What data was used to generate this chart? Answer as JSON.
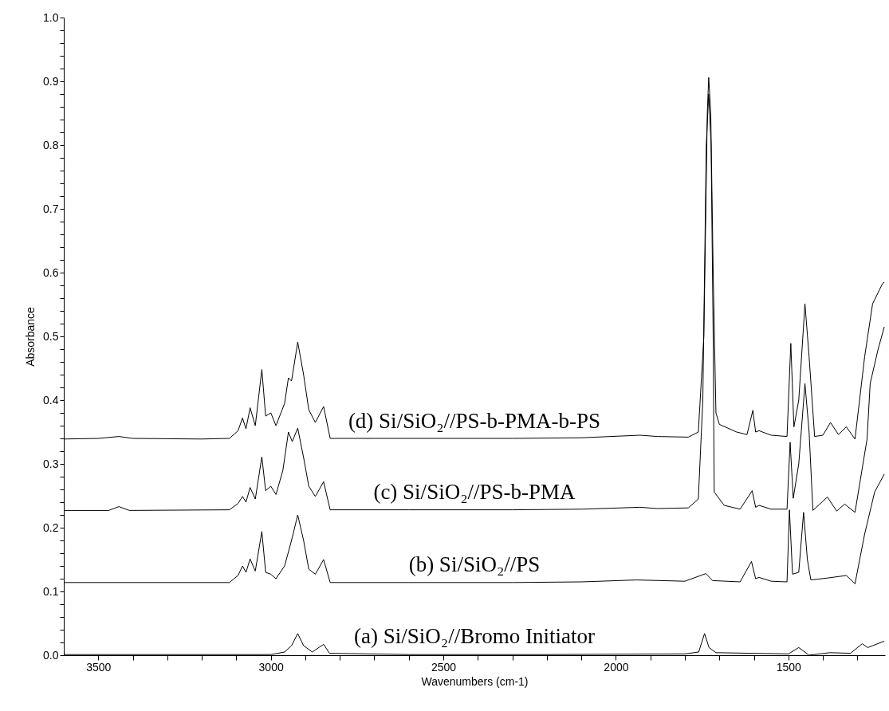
{
  "chart_data": {
    "type": "line",
    "xlabel": "Wavenumbers (cm-1)",
    "ylabel": "Absorbance",
    "xlim": [
      3600,
      1220
    ],
    "ylim": [
      0,
      1.0
    ],
    "xticks": [
      3500,
      {
        "value": 3400,
        "label": null
      },
      {
        "value": 3300,
        "label": null
      },
      {
        "value": 3200,
        "label": null
      },
      {
        "value": 3100,
        "label": null
      },
      3000,
      {
        "value": 2900,
        "label": null
      },
      {
        "value": 2800,
        "label": null
      },
      {
        "value": 2700,
        "label": null
      },
      {
        "value": 2600,
        "label": null
      },
      2500,
      {
        "value": 2400,
        "label": null
      },
      {
        "value": 2300,
        "label": null
      },
      {
        "value": 2200,
        "label": null
      },
      {
        "value": 2100,
        "label": null
      },
      2000,
      {
        "value": 1900,
        "label": null
      },
      {
        "value": 1800,
        "label": null
      },
      {
        "value": 1700,
        "label": null
      },
      {
        "value": 1600,
        "label": null
      },
      1500,
      {
        "value": 1400,
        "label": null
      },
      {
        "value": 1300,
        "label": null
      }
    ],
    "yticks": [
      {
        "value": 0,
        "label": "0.0"
      },
      {
        "value": 0.02,
        "label": null
      },
      {
        "value": 0.04,
        "label": null
      },
      {
        "value": 0.06,
        "label": null
      },
      {
        "value": 0.08,
        "label": null
      },
      0.1,
      {
        "value": 0.12,
        "label": null
      },
      {
        "value": 0.14,
        "label": null
      },
      {
        "value": 0.16,
        "label": null
      },
      {
        "value": 0.18,
        "label": null
      },
      0.2,
      {
        "value": 0.22,
        "label": null
      },
      {
        "value": 0.24,
        "label": null
      },
      {
        "value": 0.26,
        "label": null
      },
      {
        "value": 0.28,
        "label": null
      },
      0.3,
      {
        "value": 0.32,
        "label": null
      },
      {
        "value": 0.34,
        "label": null
      },
      {
        "value": 0.36,
        "label": null
      },
      {
        "value": 0.38,
        "label": null
      },
      0.4,
      {
        "value": 0.42,
        "label": null
      },
      {
        "value": 0.44,
        "label": null
      },
      {
        "value": 0.46,
        "label": null
      },
      {
        "value": 0.48,
        "label": null
      },
      0.5,
      {
        "value": 0.52,
        "label": null
      },
      {
        "value": 0.54,
        "label": null
      },
      {
        "value": 0.56,
        "label": null
      },
      {
        "value": 0.58,
        "label": null
      },
      0.6,
      {
        "value": 0.62,
        "label": null
      },
      {
        "value": 0.64,
        "label": null
      },
      {
        "value": 0.66,
        "label": null
      },
      {
        "value": 0.68,
        "label": null
      },
      0.7,
      {
        "value": 0.72,
        "label": null
      },
      {
        "value": 0.74,
        "label": null
      },
      {
        "value": 0.76,
        "label": null
      },
      {
        "value": 0.78,
        "label": null
      },
      0.8,
      {
        "value": 0.82,
        "label": null
      },
      {
        "value": 0.84,
        "label": null
      },
      {
        "value": 0.86,
        "label": null
      },
      {
        "value": 0.88,
        "label": null
      },
      0.9,
      {
        "value": 0.92,
        "label": null
      },
      {
        "value": 0.94,
        "label": null
      },
      {
        "value": 0.96,
        "label": null
      },
      {
        "value": 0.98,
        "label": null
      },
      {
        "value": 1.0,
        "label": "1.0"
      }
    ],
    "grid": false,
    "legend": false,
    "marker": "none",
    "line_style": "solid",
    "series": [
      {
        "name": "(d) Si/SiO₂//PS-b-PMA-b-PS",
        "color": "#000000",
        "x": [
          3600,
          3500,
          3440,
          3400,
          3200,
          3120,
          3095,
          3082,
          3072,
          3060,
          3045,
          3026,
          3015,
          3000,
          2985,
          2960,
          2949,
          2940,
          2922,
          2905,
          2890,
          2871,
          2847,
          2828,
          2700,
          2500,
          2300,
          2100,
          1930,
          1880,
          1790,
          1761,
          1745,
          1735,
          1731,
          1725,
          1718,
          1710,
          1700,
          1650,
          1620,
          1603,
          1595,
          1585,
          1550,
          1504,
          1493,
          1484,
          1470,
          1452,
          1440,
          1424,
          1400,
          1378,
          1355,
          1332,
          1307,
          1279,
          1256,
          1227,
          1222
        ],
        "values": [
          0.339,
          0.34,
          0.343,
          0.34,
          0.339,
          0.34,
          0.352,
          0.372,
          0.355,
          0.388,
          0.36,
          0.448,
          0.375,
          0.38,
          0.36,
          0.395,
          0.435,
          0.43,
          0.491,
          0.44,
          0.385,
          0.365,
          0.39,
          0.34,
          0.34,
          0.34,
          0.34,
          0.341,
          0.345,
          0.343,
          0.342,
          0.35,
          0.5,
          0.85,
          0.906,
          0.85,
          0.6,
          0.38,
          0.362,
          0.35,
          0.346,
          0.384,
          0.35,
          0.352,
          0.345,
          0.343,
          0.489,
          0.358,
          0.4,
          0.551,
          0.468,
          0.343,
          0.345,
          0.365,
          0.346,
          0.358,
          0.339,
          0.468,
          0.551,
          0.583,
          0.585
        ]
      },
      {
        "name": "(c) Si/SiO₂//PS-b-PMA",
        "color": "#000000",
        "x": [
          3600,
          3470,
          3440,
          3410,
          3120,
          3095,
          3082,
          3072,
          3060,
          3045,
          3026,
          3015,
          3000,
          2985,
          2965,
          2949,
          2938,
          2922,
          2905,
          2890,
          2871,
          2847,
          2828,
          2600,
          2300,
          2100,
          1930,
          1880,
          1790,
          1761,
          1748,
          1738,
          1731,
          1724,
          1718,
          1715,
          1686,
          1640,
          1605,
          1595,
          1585,
          1550,
          1504,
          1495,
          1486,
          1470,
          1452,
          1440,
          1429,
          1387,
          1360,
          1337,
          1307,
          1272,
          1263,
          1240,
          1222
        ],
        "values": [
          0.227,
          0.227,
          0.233,
          0.227,
          0.228,
          0.238,
          0.249,
          0.24,
          0.263,
          0.245,
          0.311,
          0.258,
          0.265,
          0.252,
          0.29,
          0.35,
          0.335,
          0.356,
          0.31,
          0.265,
          0.249,
          0.272,
          0.228,
          0.228,
          0.228,
          0.229,
          0.232,
          0.23,
          0.231,
          0.245,
          0.4,
          0.8,
          0.88,
          0.8,
          0.5,
          0.256,
          0.235,
          0.229,
          0.258,
          0.232,
          0.235,
          0.229,
          0.229,
          0.334,
          0.246,
          0.3,
          0.426,
          0.35,
          0.227,
          0.248,
          0.226,
          0.237,
          0.224,
          0.339,
          0.426,
          0.48,
          0.515
        ]
      },
      {
        "name": "(b) Si/SiO₂//PS",
        "color": "#000000",
        "x": [
          3600,
          3120,
          3095,
          3082,
          3072,
          3060,
          3045,
          3026,
          3015,
          3000,
          2985,
          2960,
          2940,
          2922,
          2905,
          2890,
          2871,
          2847,
          2828,
          2600,
          2300,
          2100,
          1940,
          1800,
          1739,
          1720,
          1640,
          1607,
          1595,
          1585,
          1550,
          1504,
          1497,
          1488,
          1470,
          1456,
          1445,
          1435,
          1387,
          1332,
          1307,
          1279,
          1250,
          1222
        ],
        "values": [
          0.114,
          0.114,
          0.125,
          0.14,
          0.13,
          0.151,
          0.132,
          0.194,
          0.13,
          0.127,
          0.12,
          0.14,
          0.18,
          0.22,
          0.18,
          0.135,
          0.127,
          0.15,
          0.114,
          0.114,
          0.114,
          0.115,
          0.118,
          0.116,
          0.128,
          0.117,
          0.115,
          0.147,
          0.12,
          0.122,
          0.116,
          0.115,
          0.228,
          0.127,
          0.13,
          0.224,
          0.15,
          0.118,
          0.121,
          0.125,
          0.112,
          0.19,
          0.256,
          0.284
        ]
      },
      {
        "name": "(a) Si/SiO₂//Bromo Initiator",
        "color": "#000000",
        "x": [
          3600,
          3200,
          3000,
          2960,
          2940,
          2922,
          2905,
          2880,
          2847,
          2830,
          2600,
          2200,
          1800,
          1760,
          1743,
          1730,
          1710,
          1500,
          1470,
          1440,
          1380,
          1320,
          1286,
          1270,
          1222
        ],
        "values": [
          0.001,
          0.001,
          0.001,
          0.005,
          0.015,
          0.034,
          0.015,
          0.005,
          0.017,
          0.003,
          0.001,
          0.001,
          0.002,
          0.005,
          0.034,
          0.012,
          0.004,
          0.002,
          0.012,
          0.0,
          0.004,
          0.003,
          0.018,
          0.012,
          0.022
        ]
      }
    ]
  }
}
